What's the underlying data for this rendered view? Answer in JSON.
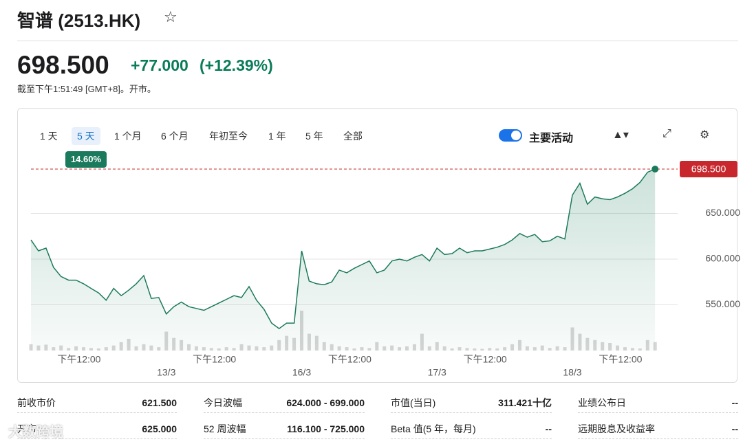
{
  "header": {
    "title": "智谱 (2513.HK)"
  },
  "quote": {
    "price": "698.500",
    "change": "+77.000",
    "change_pct": "(+12.39%)",
    "time": "截至下午1:51:49 [GMT+8]。开市。"
  },
  "tabs": [
    "1 天",
    "5 天",
    "1 个月",
    "6 个月",
    "年初至今",
    "1 年",
    "5 年",
    "全部"
  ],
  "range_change": "14.60%",
  "toggle_label": "主要活动",
  "chart_data": {
    "type": "line",
    "color": "#1b7a5c",
    "price_line_color": "#c8282d",
    "values": [
      621,
      609,
      612,
      591,
      581,
      577,
      577,
      573,
      568,
      563,
      555,
      568,
      560,
      566,
      573,
      582,
      557,
      558,
      540,
      548,
      553,
      548,
      546,
      544,
      548,
      552,
      556,
      560,
      558,
      570,
      555,
      545,
      530,
      524,
      530,
      530,
      609,
      576,
      573,
      572,
      575,
      588,
      585,
      590,
      594,
      598,
      585,
      588,
      598,
      600,
      598,
      602,
      605,
      598,
      612,
      605,
      606,
      612,
      607,
      609,
      609,
      611,
      613,
      616,
      621,
      628,
      624,
      627,
      619,
      620,
      625,
      622,
      670,
      683,
      660,
      668,
      666,
      665,
      668,
      672,
      677,
      684,
      695,
      698.5
    ],
    "volume": [
      15,
      12,
      14,
      8,
      12,
      6,
      10,
      8,
      6,
      5,
      8,
      12,
      20,
      28,
      10,
      15,
      12,
      8,
      45,
      30,
      25,
      15,
      10,
      8,
      6,
      5,
      8,
      6,
      15,
      12,
      10,
      8,
      12,
      25,
      35,
      30,
      95,
      40,
      35,
      20,
      15,
      10,
      8,
      5,
      8,
      6,
      20,
      10,
      12,
      8,
      10,
      15,
      40,
      10,
      20,
      10,
      5,
      8,
      6,
      5,
      4,
      6,
      5,
      8,
      15,
      25,
      10,
      8,
      12,
      6,
      10,
      8,
      55,
      40,
      30,
      25,
      20,
      18,
      12,
      8,
      6,
      5,
      25,
      20
    ],
    "xlim": [
      0,
      86
    ],
    "ylim": [
      500,
      703
    ],
    "yticks": [
      {
        "value": 550,
        "label": "550.000"
      },
      {
        "value": 600,
        "label": "600.000"
      },
      {
        "value": 650,
        "label": "650.000"
      }
    ],
    "xticks": [
      {
        "value": 6.4,
        "label": "下午12:00"
      },
      {
        "value": 24.4,
        "label": "下午12:00"
      },
      {
        "value": 42.4,
        "label": "下午12:00"
      },
      {
        "value": 60.4,
        "label": "下午12:00"
      },
      {
        "value": 78.4,
        "label": "下午12:00"
      }
    ],
    "date_ticks": [
      {
        "value": 18,
        "label": "13/3"
      },
      {
        "value": 36,
        "label": "16/3"
      },
      {
        "value": 54,
        "label": "17/3"
      },
      {
        "value": 72,
        "label": "18/3"
      }
    ],
    "last_price": {
      "value": 698.5,
      "label": "698.500"
    },
    "grid": true
  },
  "table": {
    "rows": [
      [
        "前收市价",
        "621.500",
        "今日波幅",
        "624.000 - 699.000",
        "市值(当日)",
        "311.421十亿",
        "业绩公布日",
        "--"
      ],
      [
        "开市",
        "625.000",
        "52 周波幅",
        "116.100 - 725.000",
        "Beta 值(5 年，每月)",
        "--",
        "远期股息及收益率",
        "--"
      ]
    ]
  },
  "watermark": "大数跨境"
}
